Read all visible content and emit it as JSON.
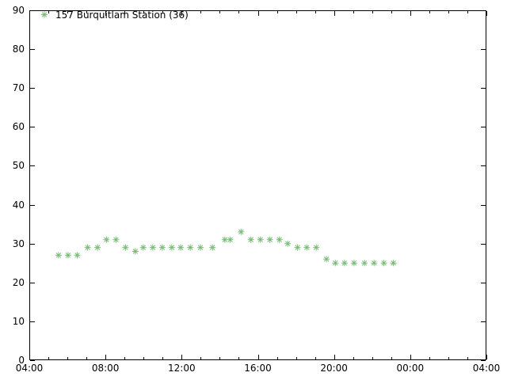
{
  "chart_data": {
    "type": "scatter",
    "title": "",
    "xlabel": "",
    "ylabel": "",
    "grid": false,
    "background_color": "#ffffff",
    "axis_color": "#000000",
    "legend": {
      "label": "157 Burquitlam Station (36)",
      "marker": "asterisk",
      "color": "#78bc78",
      "position": "top-left-inside"
    },
    "x_axis": {
      "start_hours": 4,
      "end_hours": 28,
      "major_ticks": [
        {
          "hours": 4,
          "label": "04:00"
        },
        {
          "hours": 8,
          "label": "08:00"
        },
        {
          "hours": 12,
          "label": "12:00"
        },
        {
          "hours": 16,
          "label": "16:00"
        },
        {
          "hours": 20,
          "label": "20:00"
        },
        {
          "hours": 24,
          "label": "00:00"
        },
        {
          "hours": 28,
          "label": "04:00"
        }
      ],
      "minor_tick_hours": [
        5,
        6,
        7,
        9,
        10,
        11,
        13,
        14,
        15,
        17,
        18,
        19,
        21,
        22,
        23,
        25,
        26,
        27
      ]
    },
    "y_axis": {
      "min": 0,
      "max": 90,
      "tick_values": [
        0,
        10,
        20,
        30,
        40,
        50,
        60,
        70,
        80,
        90
      ],
      "tick_labels": [
        "0",
        "10",
        "20",
        "30",
        "40",
        "50",
        "60",
        "70",
        "80",
        "90"
      ]
    },
    "series": [
      {
        "name": "157 Burquitlam Station (36)",
        "marker": "asterisk",
        "color": "#78bc78",
        "point_count": 36,
        "points": [
          {
            "time": "05:32",
            "value": 27
          },
          {
            "time": "06:02",
            "value": 27
          },
          {
            "time": "06:31",
            "value": 27
          },
          {
            "time": "07:04",
            "value": 29
          },
          {
            "time": "07:35",
            "value": 29
          },
          {
            "time": "08:03",
            "value": 31
          },
          {
            "time": "08:33",
            "value": 31
          },
          {
            "time": "09:03",
            "value": 29
          },
          {
            "time": "09:34",
            "value": 28
          },
          {
            "time": "09:59",
            "value": 29
          },
          {
            "time": "10:29",
            "value": 29
          },
          {
            "time": "10:59",
            "value": 29
          },
          {
            "time": "11:29",
            "value": 29
          },
          {
            "time": "11:57",
            "value": 29
          },
          {
            "time": "12:27",
            "value": 29
          },
          {
            "time": "12:59",
            "value": 29
          },
          {
            "time": "13:37",
            "value": 29
          },
          {
            "time": "14:16",
            "value": 31
          },
          {
            "time": "14:33",
            "value": 31
          },
          {
            "time": "15:07",
            "value": 33
          },
          {
            "time": "15:38",
            "value": 31
          },
          {
            "time": "16:08",
            "value": 31
          },
          {
            "time": "16:38",
            "value": 31
          },
          {
            "time": "17:08",
            "value": 31
          },
          {
            "time": "17:34",
            "value": 30
          },
          {
            "time": "18:05",
            "value": 29
          },
          {
            "time": "18:34",
            "value": 29
          },
          {
            "time": "19:04",
            "value": 29
          },
          {
            "time": "19:36",
            "value": 26
          },
          {
            "time": "20:04",
            "value": 25
          },
          {
            "time": "20:33",
            "value": 25
          },
          {
            "time": "21:03",
            "value": 25
          },
          {
            "time": "21:36",
            "value": 25
          },
          {
            "time": "22:06",
            "value": 25
          },
          {
            "time": "22:37",
            "value": 25
          },
          {
            "time": "23:07",
            "value": 25
          }
        ]
      }
    ]
  }
}
